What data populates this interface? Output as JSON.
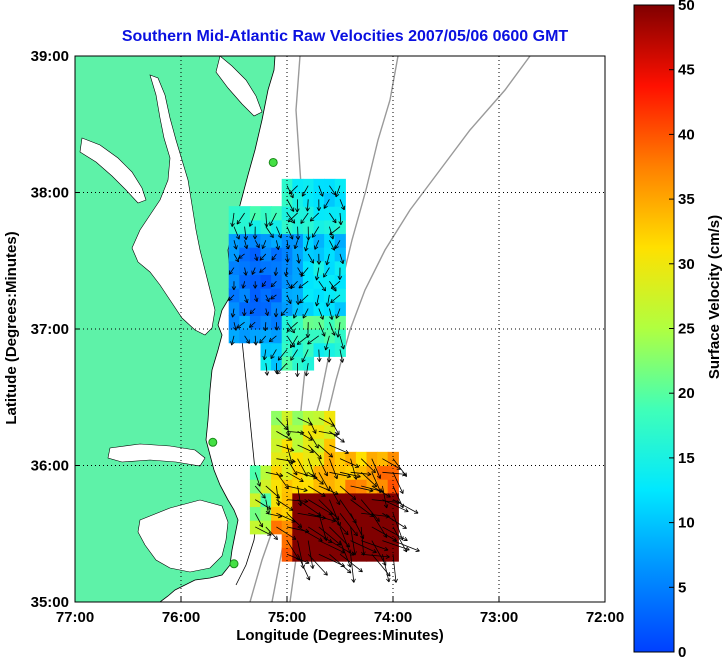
{
  "chart_data": {
    "type": "heatmap",
    "title": "Southern Mid-Atlantic Raw Velocities 2007/05/06 0600 GMT",
    "xlabel": "Longitude (Degrees:Minutes)",
    "ylabel": "Latitude (Degrees:Minutes)",
    "x_ticks": [
      "77:00",
      "76:00",
      "75:00",
      "74:00",
      "73:00",
      "72:00"
    ],
    "x_tick_values": [
      -77,
      -76,
      -75,
      -74,
      -73,
      -72
    ],
    "y_ticks": [
      "39:00",
      "38:00",
      "37:00",
      "36:00",
      "35:00"
    ],
    "y_tick_values": [
      39,
      38,
      37,
      36,
      35
    ],
    "xlim": [
      -77,
      -72
    ],
    "ylim": [
      35,
      39
    ],
    "grid": true,
    "colorbar": {
      "label": "Surface Velocity (cm/s)",
      "range": [
        0,
        50
      ],
      "ticks": [
        "50",
        "45",
        "40",
        "35",
        "30",
        "25",
        "20",
        "15",
        "10",
        "5",
        "0"
      ],
      "tick_values": [
        50,
        45,
        40,
        35,
        30,
        25,
        20,
        15,
        10,
        5,
        0
      ]
    },
    "stations": [
      {
        "lon": -75.13,
        "lat": 38.22
      },
      {
        "lon": -75.7,
        "lat": 36.17
      },
      {
        "lon": -75.5,
        "lat": 35.28
      }
    ],
    "regions": [
      {
        "name": "north",
        "lon": [
          -75.55,
          -74.55
        ],
        "lat": [
          36.7,
          38.1
        ],
        "typical_speed": 8
      },
      {
        "name": "south",
        "lon": [
          -75.35,
          -74.05
        ],
        "lat": [
          35.3,
          36.35
        ],
        "typical_speed": 40
      }
    ]
  },
  "colors": {
    "land": "#5ef2a8",
    "water": "#ffffff",
    "title": "#0a10e0",
    "station": "#44e044",
    "isobath": "#9a9a9a",
    "grid": "#000000"
  }
}
